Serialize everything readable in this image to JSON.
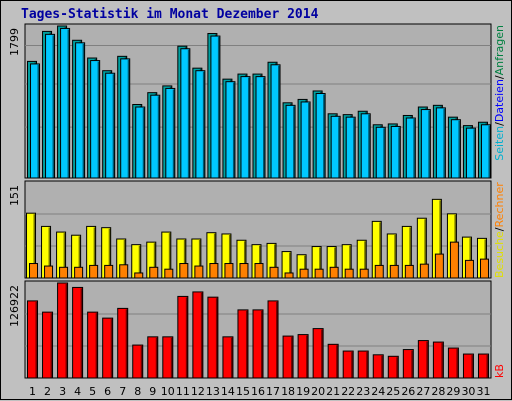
{
  "title": "Tages-Statistik im Monat Dezember 2014",
  "chart_data": [
    {
      "type": "bar",
      "panel": "top",
      "y_tick_label": "1799",
      "ylim": [
        0,
        1799
      ],
      "categories": [
        "1",
        "2",
        "3",
        "4",
        "5",
        "6",
        "7",
        "8",
        "9",
        "10",
        "11",
        "12",
        "13",
        "14",
        "15",
        "16",
        "17",
        "18",
        "19",
        "20",
        "21",
        "22",
        "23",
        "24",
        "25",
        "26",
        "27",
        "28",
        "29",
        "30",
        "31"
      ],
      "weekend_days": [
        "6",
        "7",
        "13",
        "14",
        "20",
        "21",
        "27",
        "28"
      ],
      "legend_right": [
        {
          "text": "Anfragen",
          "color": "#008040"
        },
        {
          "text": "/",
          "color": "#000000"
        },
        {
          "text": "Dateien",
          "color": "#0000ff"
        },
        {
          "text": "/",
          "color": "#000000"
        },
        {
          "text": "Seiten",
          "color": "#00b0d0"
        }
      ],
      "series": [
        {
          "name": "Anfragen",
          "color": "#00a0a0",
          "values": [
            1380,
            1735,
            1799,
            1630,
            1420,
            1270,
            1440,
            870,
            1010,
            1090,
            1560,
            1300,
            1710,
            1170,
            1230,
            1230,
            1370,
            890,
            930,
            1030,
            760,
            750,
            790,
            630,
            640,
            740,
            840,
            860,
            720,
            620,
            660
          ]
        },
        {
          "name": "Dateien",
          "color": "#00c8ff",
          "values": [
            1350,
            1700,
            1770,
            1600,
            1390,
            1240,
            1410,
            840,
            980,
            1060,
            1530,
            1270,
            1680,
            1140,
            1200,
            1200,
            1340,
            860,
            900,
            1000,
            730,
            720,
            760,
            600,
            610,
            710,
            810,
            830,
            690,
            590,
            630
          ]
        }
      ]
    },
    {
      "type": "bar",
      "panel": "middle",
      "y_tick_label": "151",
      "ylim": [
        0,
        151
      ],
      "legend_right": [
        {
          "text": "Besuche",
          "color": "#e0e000"
        },
        {
          "text": "/",
          "color": "#000000"
        },
        {
          "text": "Rechner",
          "color": "#ff8000"
        }
      ],
      "series": [
        {
          "name": "Besuche",
          "color": "#ffff00",
          "values": [
            103,
            82,
            73,
            68,
            82,
            80,
            62,
            53,
            57,
            73,
            62,
            62,
            72,
            70,
            60,
            53,
            55,
            42,
            37,
            50,
            50,
            53,
            60,
            90,
            70,
            82,
            95,
            125,
            102,
            65,
            63
          ]
        },
        {
          "name": "Rechner",
          "color": "#ff8000",
          "values": [
            23,
            19,
            17,
            17,
            20,
            20,
            21,
            8,
            17,
            14,
            23,
            19,
            23,
            23,
            23,
            23,
            17,
            8,
            14,
            14,
            17,
            14,
            14,
            20,
            20,
            20,
            22,
            38,
            57,
            28,
            30
          ]
        }
      ]
    },
    {
      "type": "bar",
      "panel": "bottom",
      "y_tick_label": "126922",
      "ylim": [
        0,
        126922
      ],
      "legend_right": [
        {
          "text": "kB",
          "color": "#ff0000"
        }
      ],
      "series": [
        {
          "name": "kB",
          "color": "#ff0000",
          "values": [
            103000,
            88000,
            126922,
            121000,
            88000,
            80000,
            93000,
            44000,
            55000,
            55000,
            109000,
            115000,
            108000,
            55000,
            91000,
            91000,
            103000,
            56000,
            58000,
            66000,
            45000,
            36000,
            36000,
            31000,
            29000,
            38000,
            50000,
            48000,
            40000,
            32000,
            32000
          ]
        }
      ]
    }
  ]
}
